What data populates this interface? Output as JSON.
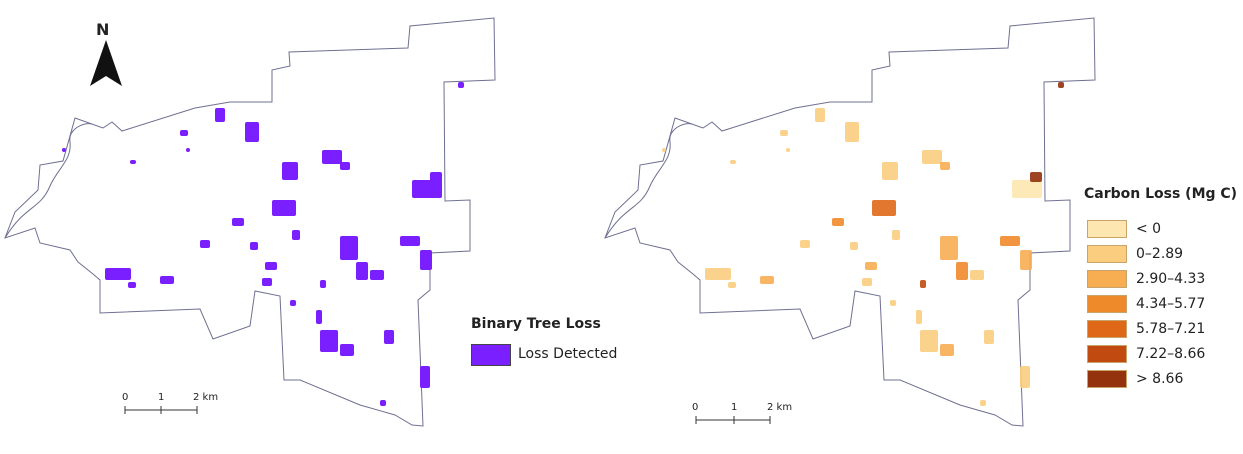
{
  "north_arrow": {
    "letter": "N"
  },
  "left_panel": {
    "legend": {
      "title": "Binary Tree Loss",
      "items": [
        {
          "label": "Loss Detected",
          "color": "#7a1fff"
        }
      ]
    },
    "scale_bar": {
      "ticks": [
        "0",
        "1",
        "2 km"
      ]
    }
  },
  "right_panel": {
    "legend": {
      "title": "Carbon Loss (Mg C)",
      "classes": [
        {
          "label": "< 0",
          "color": "#fde6b0"
        },
        {
          "label": "0–2.89",
          "color": "#fbcd7f"
        },
        {
          "label": "2.90–4.33",
          "color": "#f7ad52"
        },
        {
          "label": "4.34–5.77",
          "color": "#ef8a2b"
        },
        {
          "label": "5.78–7.21",
          "color": "#df6818"
        },
        {
          "label": "7.22–8.66",
          "color": "#c04a10"
        },
        {
          "label": "> 8.66",
          "color": "#93320c"
        }
      ]
    },
    "scale_bar": {
      "ticks": [
        "0",
        "1",
        "2 km"
      ]
    }
  },
  "colors": {
    "boundary": "#6f7091",
    "loss": "#7a1fff"
  }
}
